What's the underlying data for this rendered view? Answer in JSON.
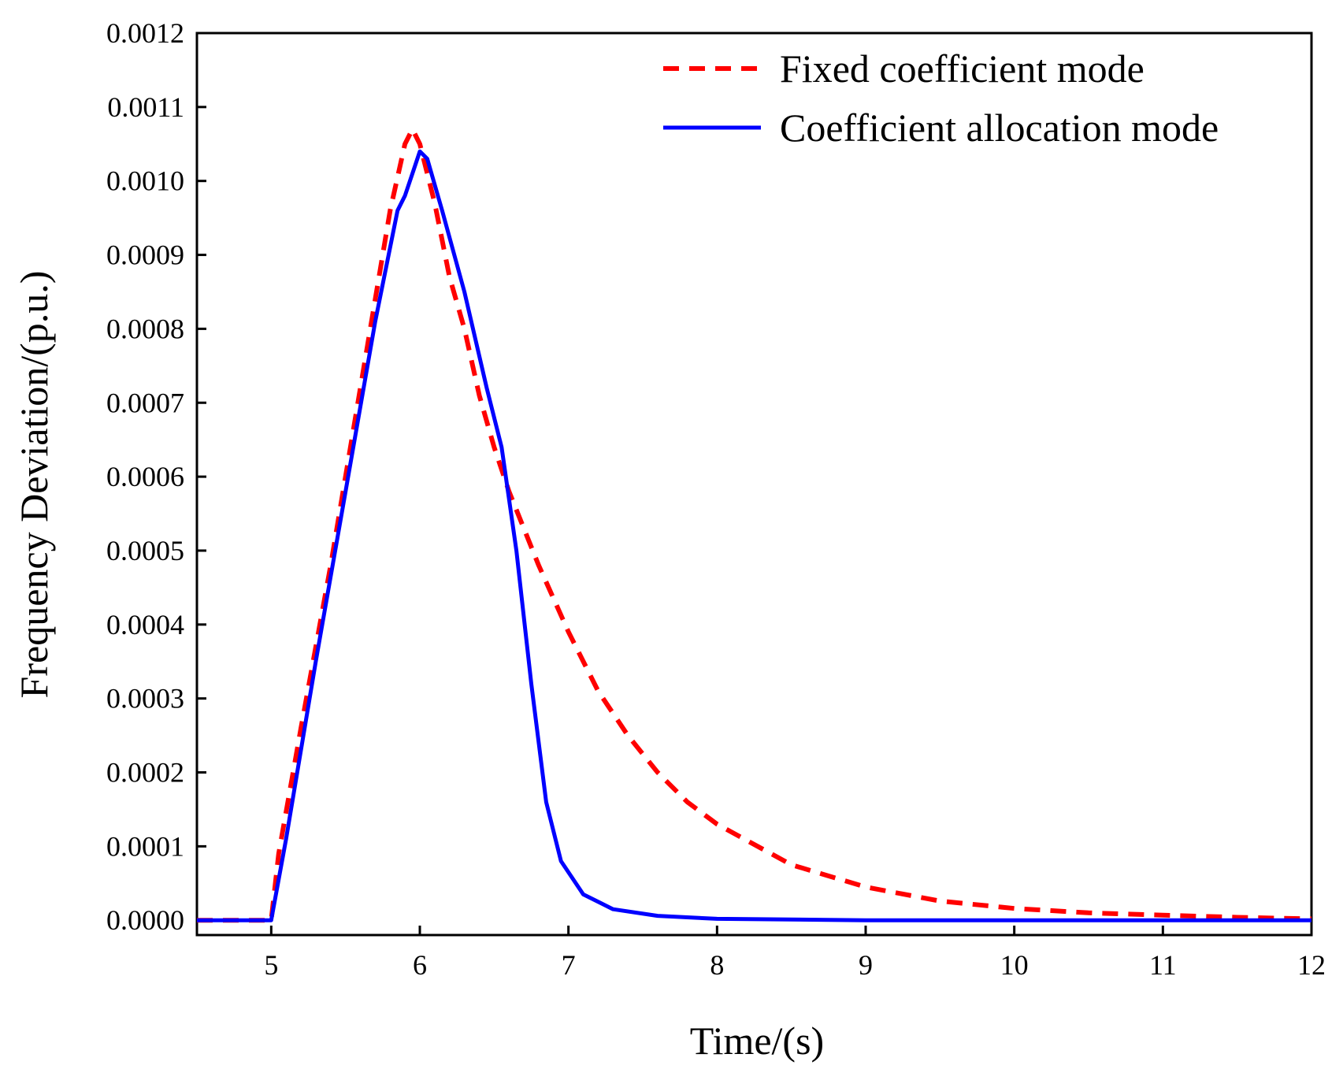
{
  "chart_data": {
    "type": "line",
    "title": "",
    "xlabel": "Time/(s)",
    "ylabel": "Frequency Deviation/(p.u.)",
    "xlim": [
      4.5,
      12
    ],
    "ylim": [
      -2e-05,
      0.0012
    ],
    "x_ticks": [
      5,
      6,
      7,
      8,
      9,
      10,
      11,
      12
    ],
    "x_tick_labels": [
      "5",
      "6",
      "7",
      "8",
      "9",
      "10",
      "11",
      "12"
    ],
    "y_ticks": [
      0,
      0.0001,
      0.0002,
      0.0003,
      0.0004,
      0.0005,
      0.0006,
      0.0007,
      0.0008,
      0.0009,
      0.001,
      0.0011,
      0.0012
    ],
    "y_tick_labels": [
      "0.0000",
      "0.0001",
      "0.0002",
      "0.0003",
      "0.0004",
      "0.0005",
      "0.0006",
      "0.0007",
      "0.0008",
      "0.0009",
      "0.0010",
      "0.0011",
      "0.0012"
    ],
    "grid": false,
    "legend_position": "top-right",
    "series": [
      {
        "name": "Fixed  coefficient  mode",
        "color": "#ff0000",
        "style": "dashed",
        "points": [
          [
            4.5,
            0
          ],
          [
            5.0,
            0
          ],
          [
            5.05,
            9e-05
          ],
          [
            5.2,
            0.00026
          ],
          [
            5.4,
            0.00048
          ],
          [
            5.6,
            0.00072
          ],
          [
            5.8,
            0.00096
          ],
          [
            5.9,
            0.00105
          ],
          [
            5.95,
            0.00107
          ],
          [
            6.0,
            0.00105
          ],
          [
            6.1,
            0.00097
          ],
          [
            6.2,
            0.00087
          ],
          [
            6.3,
            0.0008
          ],
          [
            6.4,
            0.00071
          ],
          [
            6.5,
            0.00064
          ],
          [
            6.6,
            0.00058
          ],
          [
            6.8,
            0.00048
          ],
          [
            7.0,
            0.00039
          ],
          [
            7.2,
            0.00031
          ],
          [
            7.4,
            0.00025
          ],
          [
            7.6,
            0.0002
          ],
          [
            7.8,
            0.00016
          ],
          [
            8.0,
            0.00013
          ],
          [
            8.5,
            7.5e-05
          ],
          [
            9.0,
            4.5e-05
          ],
          [
            9.5,
            2.6e-05
          ],
          [
            10.0,
            1.6e-05
          ],
          [
            10.5,
            1e-05
          ],
          [
            11.0,
            7e-06
          ],
          [
            11.5,
            4e-06
          ],
          [
            12.0,
            2e-06
          ]
        ]
      },
      {
        "name": "Coefficient allocation mode",
        "color": "#0000ff",
        "style": "solid",
        "points": [
          [
            4.5,
            0
          ],
          [
            5.0,
            0
          ],
          [
            5.1,
            0.00011
          ],
          [
            5.3,
            0.00035
          ],
          [
            5.5,
            0.00058
          ],
          [
            5.7,
            0.00081
          ],
          [
            5.85,
            0.00096
          ],
          [
            5.9,
            0.00098
          ],
          [
            5.95,
            0.00101
          ],
          [
            6.0,
            0.00104
          ],
          [
            6.05,
            0.00103
          ],
          [
            6.15,
            0.00096
          ],
          [
            6.3,
            0.00085
          ],
          [
            6.45,
            0.00072
          ],
          [
            6.55,
            0.00064
          ],
          [
            6.65,
            0.0005
          ],
          [
            6.75,
            0.00032
          ],
          [
            6.85,
            0.00016
          ],
          [
            6.95,
            8e-05
          ],
          [
            7.1,
            3.5e-05
          ],
          [
            7.3,
            1.5e-05
          ],
          [
            7.6,
            6e-06
          ],
          [
            8.0,
            2e-06
          ],
          [
            9.0,
            0
          ],
          [
            12.0,
            0
          ]
        ]
      }
    ]
  }
}
